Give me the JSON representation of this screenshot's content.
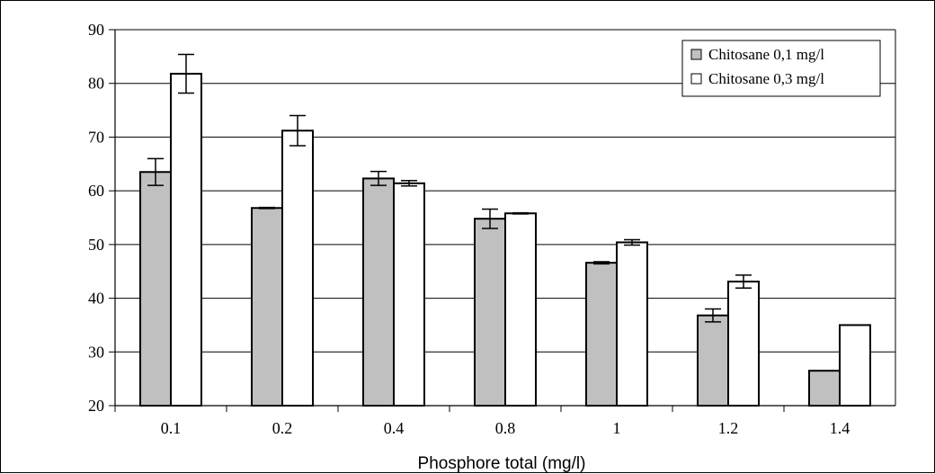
{
  "chart_data": {
    "type": "bar",
    "title": "",
    "xlabel": "Phosphore total (mg/l)",
    "ylabel": "",
    "ylim": [
      20,
      90
    ],
    "yticks": [
      20,
      30,
      40,
      50,
      60,
      70,
      80,
      90
    ],
    "grid": true,
    "legend_position": "top-right",
    "categories": [
      "0.1",
      "0.2",
      "0.4",
      "0.8",
      "1",
      "1.2",
      "1.4"
    ],
    "series": [
      {
        "name": "Chitosane 0,1 mg/l",
        "color": "#c0c0c0",
        "values": [
          63.5,
          56.8,
          62.3,
          54.8,
          46.6,
          36.8,
          26.5
        ],
        "errors": [
          2.5,
          0.1,
          1.3,
          1.8,
          0.2,
          1.2,
          0
        ]
      },
      {
        "name": "Chitosane 0,3 mg/l",
        "color": "#ffffff",
        "values": [
          81.8,
          71.2,
          61.4,
          55.8,
          50.4,
          43.1,
          35.0
        ],
        "errors": [
          3.6,
          2.8,
          0.5,
          0.1,
          0.5,
          1.2,
          0
        ]
      }
    ]
  }
}
